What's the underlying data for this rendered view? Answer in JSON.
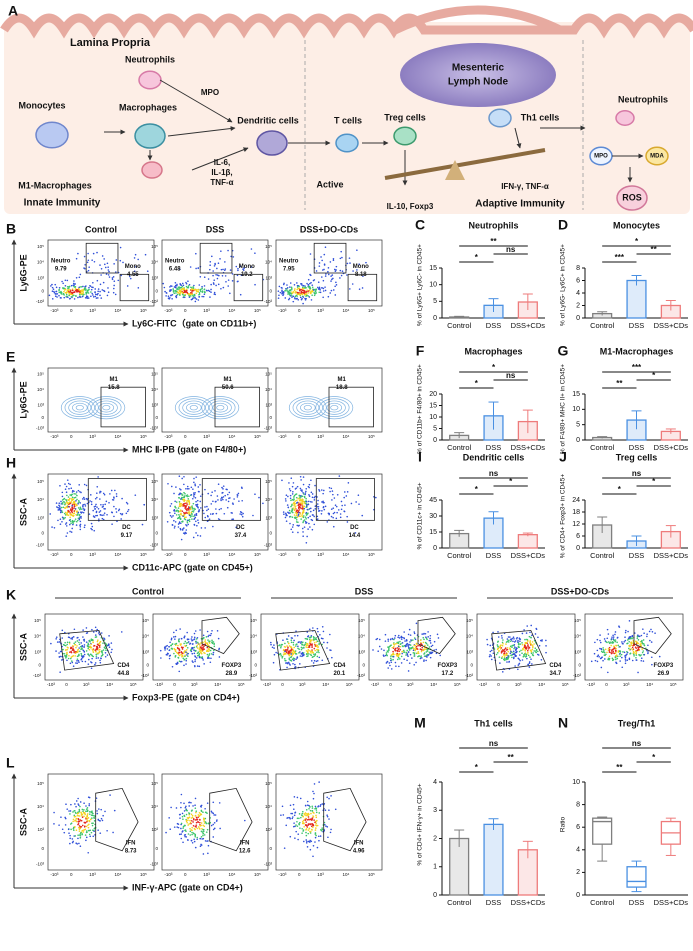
{
  "diagram": {
    "letter": "A",
    "labels": [
      "Lamina Propria",
      "Neutrophils",
      "Monocytes",
      "Macrophages",
      "MPO",
      "Dendritic cells",
      "T cells",
      "M1-Macrophages",
      "IL-6,",
      "IL-1β,",
      "TNF-α",
      "Active",
      "Innate Immunity",
      "Mesenteric",
      "Lymph Node",
      "Treg cells",
      "Th1 cells",
      "IL-10, Foxp3",
      "IFN-γ, TNF-α",
      "Adaptive Immunity",
      "Neutrophils",
      "MPO",
      "MDA",
      "ROS"
    ]
  },
  "axis_ticks": [
    "-10³",
    "0",
    "10³",
    "10⁴",
    "10⁵"
  ],
  "flow": [
    {
      "letter": "B",
      "columns": [
        "Control",
        "DSS",
        "DSS+DO-CDs"
      ],
      "y_label": "Ly6G-PE",
      "x_label": "Ly6C-FITC（gate on CD11b+)",
      "plots": [
        {
          "gates": [
            {
              "name": "Neutro",
              "value": 9.79
            },
            {
              "name": "Mono",
              "value": 4.55
            }
          ]
        },
        {
          "gates": [
            {
              "name": "Neutro",
              "value": 6.48
            },
            {
              "name": "Mono",
              "value": 19.2
            }
          ]
        },
        {
          "gates": [
            {
              "name": "Neutro",
              "value": 7.95
            },
            {
              "name": "Mono",
              "value": 8.18
            }
          ]
        }
      ]
    },
    {
      "letter": "E",
      "y_label": "Ly6G-PE",
      "x_label": "MHC Ⅱ-PB (gate on F4/80+)",
      "plots": [
        {
          "gates": [
            {
              "name": "M1",
              "value": 15.8
            }
          ]
        },
        {
          "gates": [
            {
              "name": "M1",
              "value": 50.6
            }
          ]
        },
        {
          "gates": [
            {
              "name": "M1",
              "value": 18.8
            }
          ]
        }
      ]
    },
    {
      "letter": "H",
      "y_label": "SSC-A",
      "x_label": "CD11c-APC (gate on CD45+)",
      "plots": [
        {
          "gates": [
            {
              "name": "DC",
              "value": 9.17
            }
          ]
        },
        {
          "gates": [
            {
              "name": "DC",
              "value": 37.4
            }
          ]
        },
        {
          "gates": [
            {
              "name": "DC",
              "value": 14.4
            }
          ]
        }
      ]
    },
    {
      "letter": "K",
      "columns": [
        "Control",
        "DSS",
        "DSS+DO-CDs"
      ],
      "y_label": "SSC-A",
      "x_label": "Foxp3-PE (gate on CD4+)",
      "plots": [
        {
          "gates": [
            {
              "name": "CD4",
              "value": 44.8
            }
          ]
        },
        {
          "gates": [
            {
              "name": "FOXP3",
              "value": 28.9
            }
          ]
        },
        {
          "gates": [
            {
              "name": "CD4",
              "value": 20.1
            }
          ]
        },
        {
          "gates": [
            {
              "name": "FOXP3",
              "value": 17.2
            }
          ]
        },
        {
          "gates": [
            {
              "name": "CD4",
              "value": 34.7
            }
          ]
        },
        {
          "gates": [
            {
              "name": "FOXP3",
              "value": 26.9
            }
          ]
        }
      ]
    },
    {
      "letter": "L",
      "y_label": "SSC-A",
      "x_label": "INF-γ-APC (gate on CD4+)",
      "plots": [
        {
          "gates": [
            {
              "name": "IFN",
              "value": 8.73
            }
          ]
        },
        {
          "gates": [
            {
              "name": "IFN",
              "value": 12.6
            }
          ]
        },
        {
          "gates": [
            {
              "name": "IFN",
              "value": 4.96
            }
          ]
        }
      ]
    }
  ],
  "chart_data": [
    {
      "letter": "C",
      "type": "bar",
      "title": "Neutrophils",
      "y_label": "% of Ly6G+ Ly6C- in CD45+",
      "categories": [
        "Control",
        "DSS",
        "DSS+CDs"
      ],
      "values": [
        0.3,
        3.8,
        4.8
      ],
      "errors": [
        0.2,
        2.0,
        2.4
      ],
      "colors": [
        "#7f7f7f",
        "#4a90e2",
        "#ee7b7b"
      ],
      "ylim": [
        0,
        15
      ],
      "yticks": [
        0,
        5,
        10,
        15
      ],
      "significance": [
        "**",
        "*",
        "ns"
      ]
    },
    {
      "letter": "D",
      "type": "bar",
      "title": "Monocytes",
      "y_label": "% of Ly6G- Ly6C+ in CD45+",
      "categories": [
        "Control",
        "DSS",
        "DSS+CDs"
      ],
      "values": [
        0.7,
        6.0,
        2.0
      ],
      "errors": [
        0.3,
        0.8,
        0.8
      ],
      "colors": [
        "#7f7f7f",
        "#4a90e2",
        "#ee7b7b"
      ],
      "ylim": [
        0,
        8
      ],
      "yticks": [
        0,
        2,
        4,
        6,
        8
      ],
      "significance": [
        "*",
        "***",
        "**"
      ]
    },
    {
      "letter": "F",
      "type": "bar",
      "title": "Macrophages",
      "y_label": "% of CD11b+ F4/80+ in CD45+",
      "categories": [
        "Control",
        "DSS",
        "DSS+CDs"
      ],
      "values": [
        2,
        10.5,
        8
      ],
      "errors": [
        1.2,
        6,
        5
      ],
      "colors": [
        "#7f7f7f",
        "#4a90e2",
        "#ee7b7b"
      ],
      "ylim": [
        0,
        20
      ],
      "yticks": [
        0,
        5,
        10,
        15,
        20
      ],
      "significance": [
        "*",
        "*",
        "ns"
      ]
    },
    {
      "letter": "G",
      "type": "bar",
      "title": "M1-Macrophages",
      "y_label": "% of F4/80+ MHC II+ in CD45+",
      "categories": [
        "Control",
        "DSS",
        "DSS+CDs"
      ],
      "values": [
        0.8,
        6.5,
        2.8
      ],
      "errors": [
        0.3,
        3,
        0.8
      ],
      "colors": [
        "#7f7f7f",
        "#4a90e2",
        "#ee7b7b"
      ],
      "ylim": [
        0,
        15
      ],
      "yticks": [
        0,
        5,
        10,
        15
      ],
      "significance": [
        "***",
        "**",
        "*"
      ]
    },
    {
      "letter": "I",
      "type": "bar",
      "title": "Dendritic cells",
      "y_label": "% of CD11c+ in CD45+",
      "categories": [
        "Control",
        "DSS",
        "DSS+CDs"
      ],
      "values": [
        13.5,
        28,
        12.5
      ],
      "errors": [
        3,
        6,
        1.5
      ],
      "colors": [
        "#7f7f7f",
        "#4a90e2",
        "#ee7b7b"
      ],
      "ylim": [
        0,
        45
      ],
      "yticks": [
        0,
        15,
        30,
        45
      ],
      "significance": [
        "ns",
        "*",
        "*"
      ]
    },
    {
      "letter": "J",
      "type": "bar",
      "title": "Treg cells",
      "y_label": "% of CD4+ Foxp3+ in CD45+",
      "categories": [
        "Control",
        "DSS",
        "DSS+CDs"
      ],
      "values": [
        11.5,
        3.5,
        8.2
      ],
      "errors": [
        4,
        2.5,
        3
      ],
      "colors": [
        "#7f7f7f",
        "#4a90e2",
        "#ee7b7b"
      ],
      "ylim": [
        0,
        24
      ],
      "yticks": [
        0,
        6,
        12,
        18,
        24
      ],
      "significance": [
        "ns",
        "*",
        "*"
      ]
    },
    {
      "letter": "M",
      "type": "bar",
      "title": "Th1 cells",
      "y_label": "% of CD4+ IFN-γ+ in CD45+",
      "categories": [
        "Control",
        "DSS",
        "DSS+CDs"
      ],
      "values": [
        2.0,
        2.5,
        1.6
      ],
      "errors": [
        0.3,
        0.2,
        0.3
      ],
      "colors": [
        "#7f7f7f",
        "#4a90e2",
        "#ee7b7b"
      ],
      "ylim": [
        0,
        4
      ],
      "yticks": [
        0,
        1,
        2,
        3,
        4
      ],
      "significance": [
        "ns",
        "*",
        "**"
      ]
    },
    {
      "letter": "N",
      "type": "box",
      "title": "Treg/Th1",
      "y_label": "Ratio",
      "categories": [
        "Control",
        "DSS",
        "DSS+CDs"
      ],
      "min": [
        3,
        0.3,
        3.5
      ],
      "q1": [
        4.5,
        0.7,
        4.5
      ],
      "median": [
        6.5,
        1.2,
        5.5
      ],
      "q3": [
        6.8,
        2.5,
        6.5
      ],
      "max": [
        6.9,
        3,
        6.8
      ],
      "colors": [
        "#7f7f7f",
        "#4a90e2",
        "#ee7b7b"
      ],
      "ylim": [
        0,
        10
      ],
      "yticks": [
        0,
        2,
        4,
        6,
        8,
        10
      ],
      "significance": [
        "ns",
        "**",
        "*"
      ]
    }
  ]
}
